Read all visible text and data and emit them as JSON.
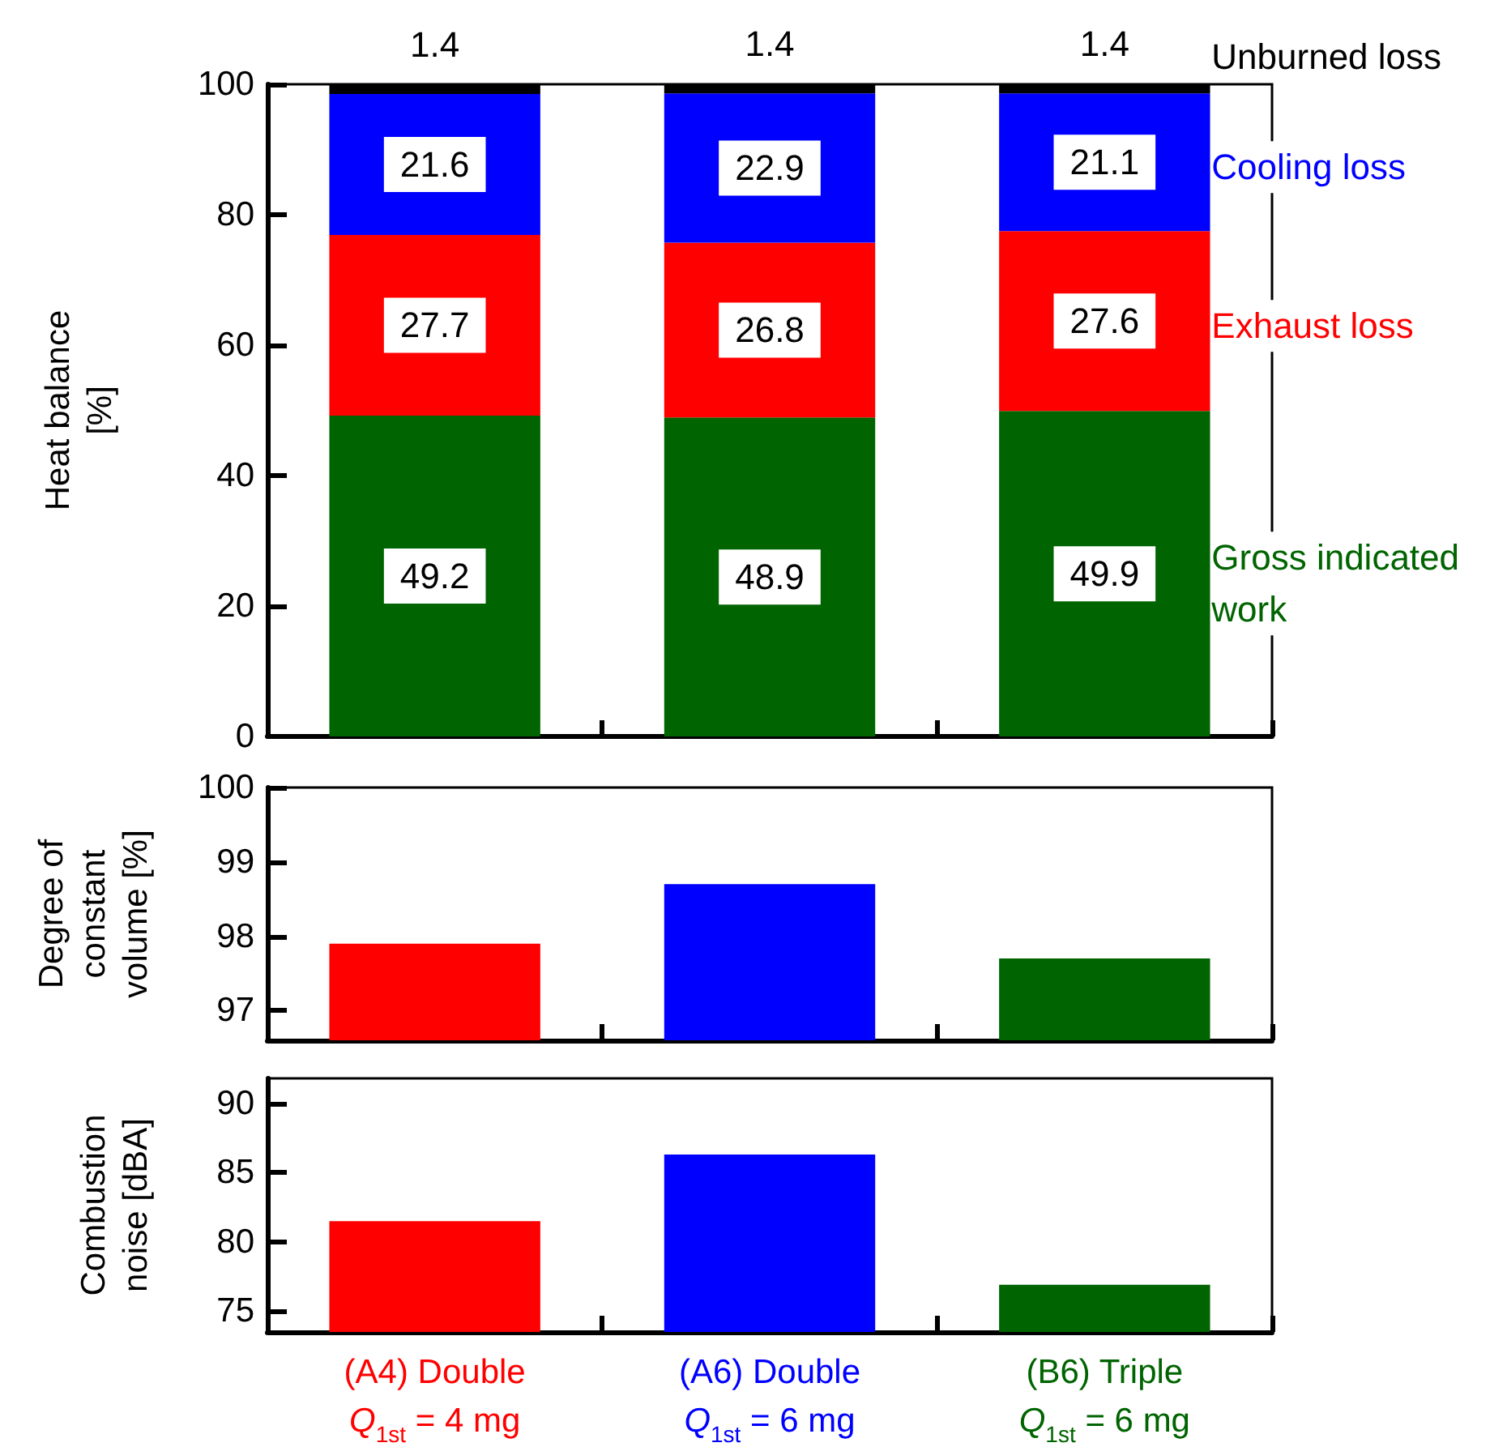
{
  "chart_data": [
    {
      "type": "bar",
      "stacked": true,
      "ylabel": "Heat balance\n[%]",
      "series": [
        {
          "name": "Gross indicated work",
          "color": "#006400",
          "values": [
            49.2,
            48.9,
            49.9
          ]
        },
        {
          "name": "Exhaust loss",
          "color": "#ff0000",
          "values": [
            27.7,
            26.8,
            27.6
          ]
        },
        {
          "name": "Cooling loss",
          "color": "#0000ff",
          "values": [
            21.6,
            22.9,
            21.1
          ]
        },
        {
          "name": "Unburned loss",
          "color": "#000000",
          "values": [
            1.4,
            1.4,
            1.4
          ]
        }
      ],
      "ylim": [
        0,
        100
      ],
      "yticks": [
        0,
        20,
        40,
        60,
        80,
        100
      ],
      "data_labels": true,
      "tick_labels": "y"
    },
    {
      "type": "bar",
      "ylabel": "Degree of\nconstant\nvolume [%]",
      "values": [
        97.9,
        98.7,
        97.7
      ],
      "colors": [
        "#ff0000",
        "#0000ff",
        "#006400"
      ],
      "ylim": [
        96.6,
        100
      ],
      "yticks": [
        97,
        98,
        99,
        100
      ],
      "tick_labels": "y"
    },
    {
      "type": "bar",
      "ylabel": "Combustion\nnoise [dBA]",
      "categories": [
        "(A4) Double\nQ$_{1st}$ = 4 mg",
        "(A6) Double\nQ$_{1st}$ = 6 mg",
        "(B6) Triple\nQ$_{1st}$ = 6 mg"
      ],
      "values": [
        81.5,
        86.3,
        76.9
      ],
      "colors": [
        "#ff0000",
        "#0000ff",
        "#006400"
      ],
      "ylim": [
        73.5,
        91.8
      ],
      "yticks": [
        75,
        80,
        85,
        90
      ]
    }
  ]
}
